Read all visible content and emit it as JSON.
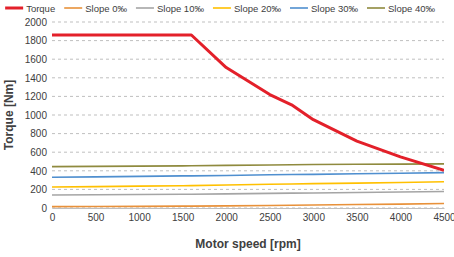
{
  "chart_data": {
    "type": "line",
    "x_label": "Motor speed [rpm]",
    "y_label": "Torque [Nm]",
    "x": [
      0,
      500,
      1000,
      1500,
      1600,
      2000,
      2500,
      2750,
      3000,
      3500,
      4000,
      4500
    ],
    "series": [
      {
        "name": "Torque",
        "color": "#e3202a",
        "values": [
          1860,
          1860,
          1860,
          1860,
          1860,
          1510,
          1220,
          1110,
          950,
          720,
          550,
          405
        ]
      },
      {
        "name": "Slope 0‰",
        "color": "#e8913a",
        "values": [
          15,
          16,
          18,
          20,
          20,
          23,
          27,
          30,
          32,
          37,
          42,
          48
        ]
      },
      {
        "name": "Slope 10‰",
        "color": "#a5a5a5",
        "values": [
          140,
          142,
          145,
          148,
          148,
          152,
          157,
          160,
          162,
          167,
          172,
          178
        ]
      },
      {
        "name": "Slope 20‰",
        "color": "#ffc000",
        "values": [
          225,
          230,
          235,
          240,
          241,
          247,
          255,
          258,
          262,
          268,
          275,
          282
        ]
      },
      {
        "name": "Slope 30‰",
        "color": "#4f8fcf",
        "values": [
          330,
          335,
          340,
          345,
          345,
          350,
          357,
          360,
          362,
          368,
          374,
          380
        ]
      },
      {
        "name": "Slope 40‰",
        "color": "#8f8a3e",
        "values": [
          445,
          448,
          450,
          453,
          454,
          458,
          462,
          465,
          467,
          470,
          472,
          475
        ]
      }
    ],
    "xlim": [
      0,
      4500
    ],
    "xticks": [
      0,
      500,
      1000,
      1500,
      2000,
      2500,
      3000,
      3500,
      4000,
      4500
    ],
    "ylim": [
      0,
      2000
    ],
    "yticks": [
      0,
      200,
      400,
      600,
      800,
      1000,
      1200,
      1400,
      1600,
      1800,
      2000
    ],
    "grid": true,
    "legend": "top"
  }
}
